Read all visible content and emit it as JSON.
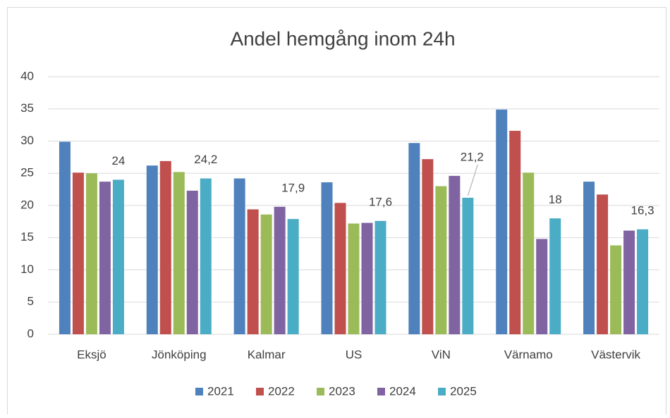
{
  "chart_data": {
    "type": "bar",
    "title": "Andel hemgång inom 24h",
    "categories": [
      "Eksjö",
      "Jönköping",
      "Kalmar",
      "US",
      "ViN",
      "Värnamo",
      "Västervik"
    ],
    "series": [
      {
        "name": "2021",
        "color": "#4f81bd",
        "values": [
          29.9,
          26.2,
          24.2,
          23.6,
          29.7,
          34.9,
          23.7
        ]
      },
      {
        "name": "2022",
        "color": "#c0504d",
        "values": [
          25.1,
          26.9,
          19.4,
          20.4,
          27.2,
          31.6,
          21.7
        ]
      },
      {
        "name": "2023",
        "color": "#9bbb59",
        "values": [
          25.0,
          25.2,
          18.6,
          17.2,
          23.0,
          25.1,
          13.8
        ]
      },
      {
        "name": "2024",
        "color": "#8064a2",
        "values": [
          23.7,
          22.3,
          19.8,
          17.3,
          24.6,
          14.8,
          16.1
        ]
      },
      {
        "name": "2025",
        "color": "#4bacc6",
        "values": [
          24,
          24.2,
          17.9,
          17.6,
          21.2,
          18,
          16.3
        ],
        "value_labels": [
          "24",
          "24,2",
          "17,9",
          "17,6",
          "21,2",
          "18",
          "16,3"
        ]
      }
    ],
    "ylim": [
      0,
      40
    ],
    "yticks": [
      0,
      5,
      10,
      15,
      20,
      25,
      30,
      35,
      40
    ],
    "grid": true,
    "legend": "bottom"
  }
}
